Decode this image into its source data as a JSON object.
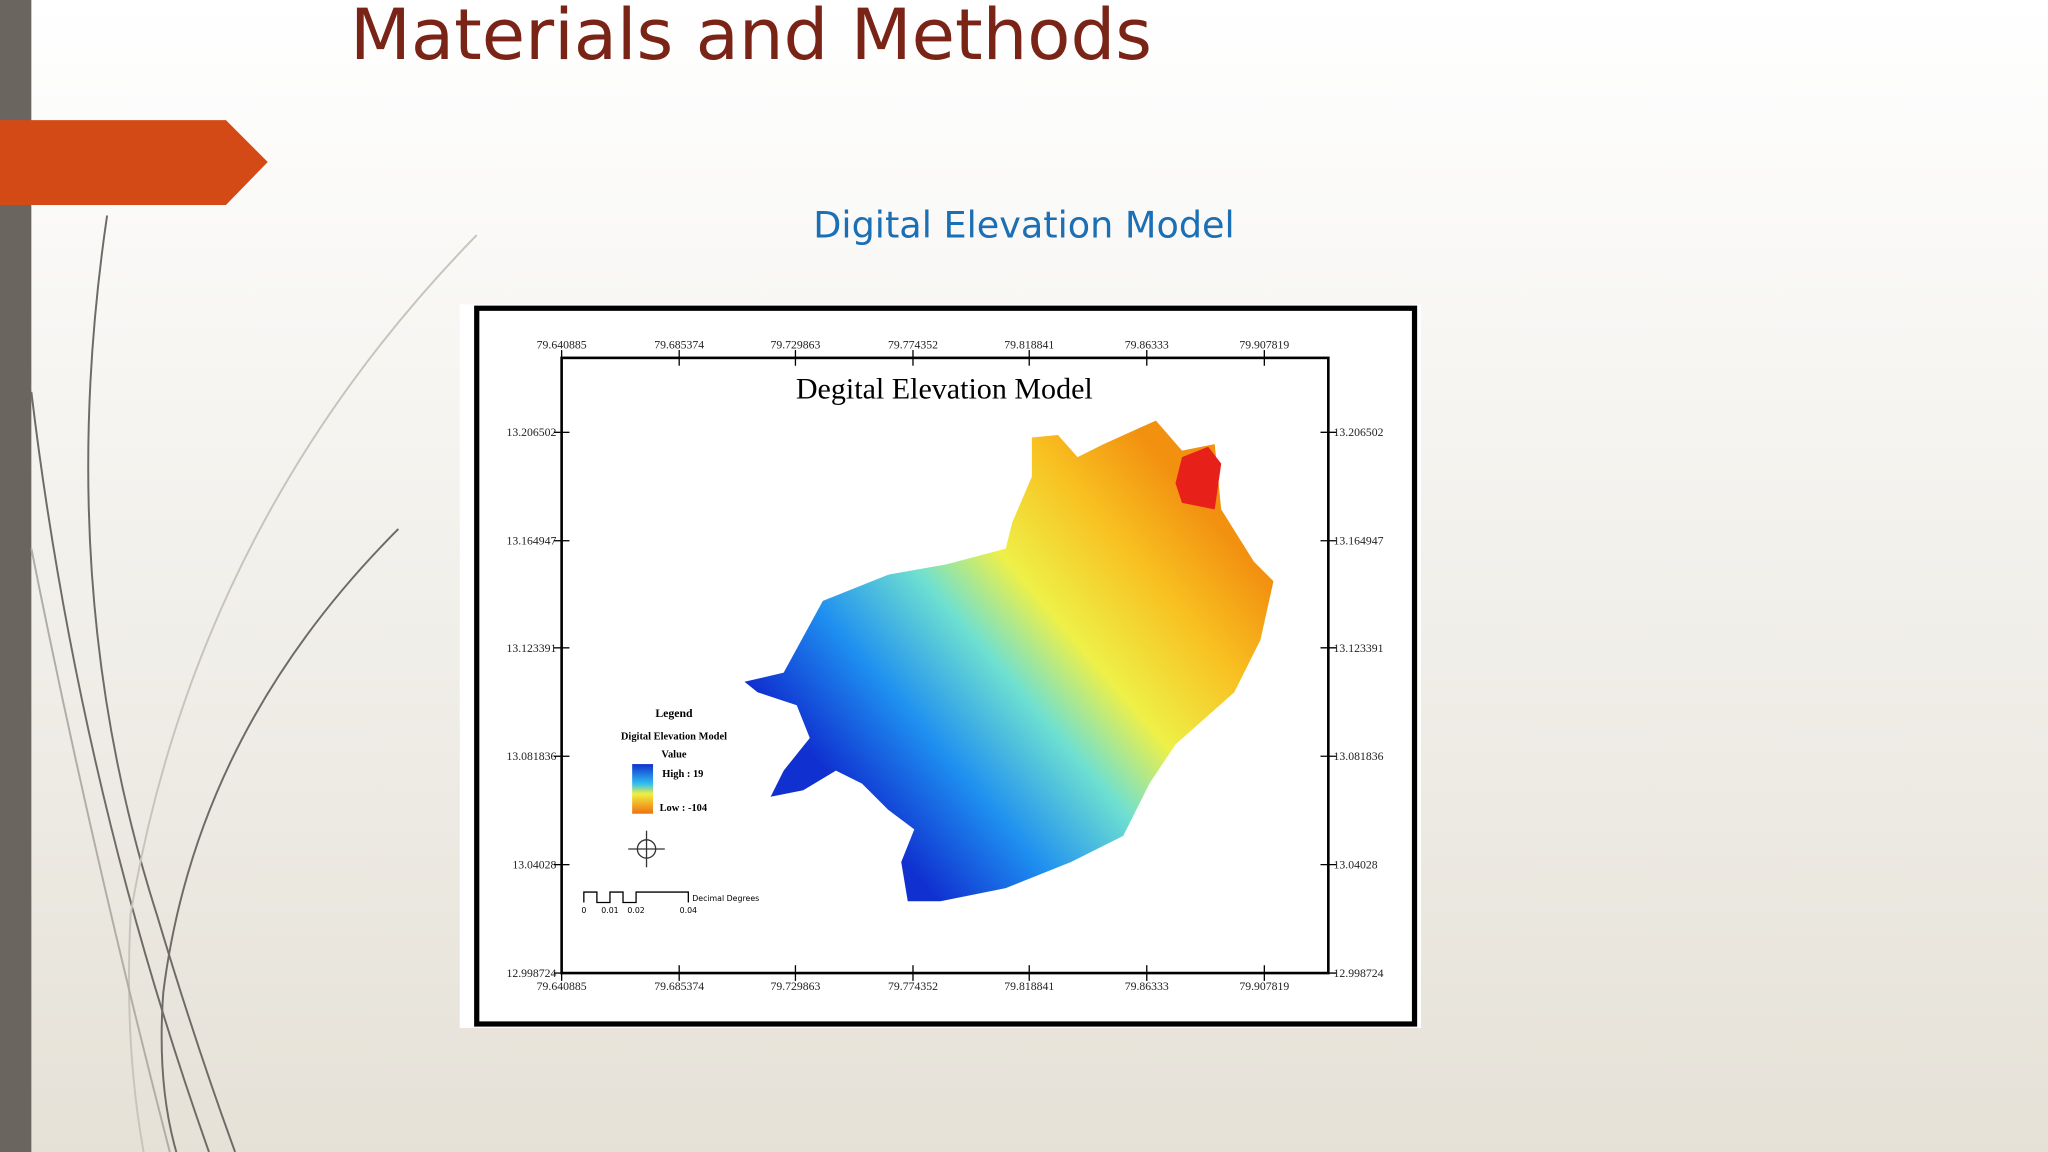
{
  "slide": {
    "title": "Materials and Methods",
    "subtitle": "Digital Elevation Model"
  },
  "map": {
    "title": "Degital Elevation Model",
    "x_labels": [
      "79.640885",
      "79.685374",
      "79.729863",
      "79.774352",
      "79.818841",
      "79.86333",
      "79.907819"
    ],
    "y_labels": [
      "13.206502",
      "13.164947",
      "13.123391",
      "13.081836",
      "13.04028",
      "12.998724"
    ],
    "legend": {
      "title": "Legend",
      "layer": "Digital Elevation Model",
      "field": "Value",
      "high": "High : 19",
      "low": "Low : -104"
    },
    "scale_bar": {
      "labels": [
        "0",
        "0.01",
        "0.02",
        "0.04"
      ],
      "unit": "Decimal Degrees"
    }
  }
}
